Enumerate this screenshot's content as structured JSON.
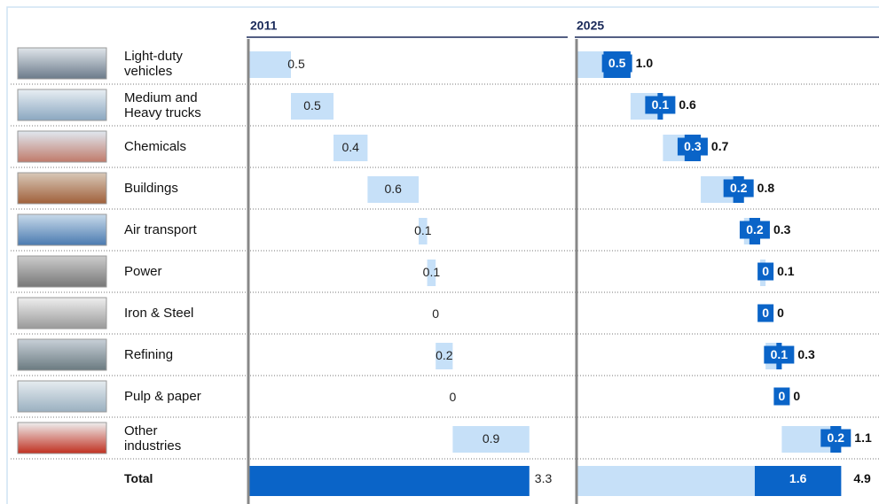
{
  "chart_data": {
    "type": "waterfall",
    "categories": [
      "Light-duty vehicles",
      "Medium and Heavy trucks",
      "Chemicals",
      "Buildings",
      "Air transport",
      "Power",
      "Iron & Steel",
      "Refining",
      "Pulp & paper",
      "Other industries"
    ],
    "total_label": "Total",
    "panels": [
      {
        "title": "2011",
        "color": "#c6e0f8",
        "total_color": "#0a64c8",
        "values": [
          0.5,
          0.5,
          0.4,
          0.6,
          0.1,
          0.1,
          0,
          0.2,
          0,
          0.9
        ],
        "total": 3.3,
        "xlim": [
          0,
          3.75
        ]
      },
      {
        "title": "2025",
        "base_color": "#c6e0f8",
        "increment_color": "#0a64c8",
        "increments": [
          0.5,
          0.1,
          0.3,
          0.2,
          0.2,
          0,
          0,
          0.1,
          0,
          0.2
        ],
        "totals": [
          1,
          0.6,
          0.7,
          0.8,
          0.3,
          0.1,
          0,
          0.3,
          0,
          1.1
        ],
        "totals_value_labels": [
          "1.0",
          "0.6",
          "0.7",
          "0.8",
          "0.3",
          "0.1",
          "0",
          "0.3",
          "0",
          "1.1"
        ],
        "total_increment": 1.6,
        "total": 4.9,
        "xlim": [
          0,
          5.6
        ]
      }
    ]
  }
}
